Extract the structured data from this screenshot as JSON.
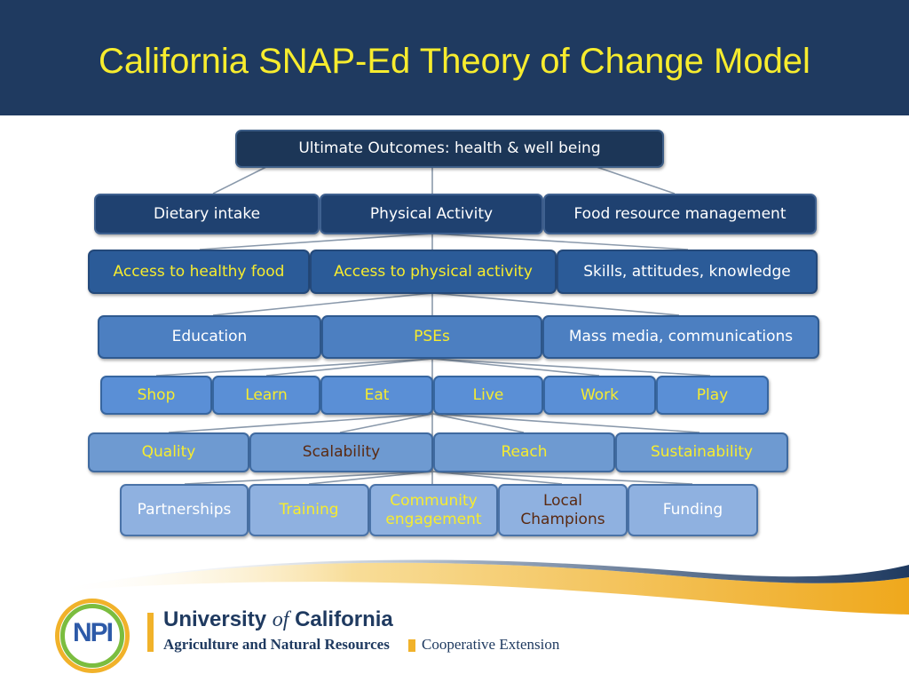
{
  "title": "California SNAP-Ed Theory of Change Model",
  "rows": [
    [
      {
        "label": "Ultimate Outcomes: health & well being",
        "color": "white"
      }
    ],
    [
      {
        "label": "Dietary intake",
        "color": "white"
      },
      {
        "label": "Physical Activity",
        "color": "white"
      },
      {
        "label": "Food resource management",
        "color": "white"
      }
    ],
    [
      {
        "label": "Access to healthy food",
        "color": "yellow"
      },
      {
        "label": "Access to physical activity",
        "color": "yellow"
      },
      {
        "label": "Skills, attitudes, knowledge",
        "color": "white"
      }
    ],
    [
      {
        "label": "Education",
        "color": "white"
      },
      {
        "label": "PSEs",
        "color": "yellow"
      },
      {
        "label": "Mass media, communications",
        "color": "white"
      }
    ],
    [
      {
        "label": "Shop",
        "color": "yellow"
      },
      {
        "label": "Learn",
        "color": "yellow"
      },
      {
        "label": "Eat",
        "color": "yellow"
      },
      {
        "label": "Live",
        "color": "yellow"
      },
      {
        "label": "Work",
        "color": "yellow"
      },
      {
        "label": "Play",
        "color": "yellow"
      }
    ],
    [
      {
        "label": "Quality",
        "color": "yellow"
      },
      {
        "label": "Scalability",
        "color": "brown"
      },
      {
        "label": "Reach",
        "color": "yellow"
      },
      {
        "label": "Sustainability",
        "color": "yellow"
      }
    ],
    [
      {
        "label": "Partnerships",
        "color": "white"
      },
      {
        "label": "Training",
        "color": "yellow"
      },
      {
        "label": "Community engagement",
        "color": "yellow"
      },
      {
        "label": "Local Champions",
        "color": "brown"
      },
      {
        "label": "Funding",
        "color": "white"
      }
    ]
  ],
  "footer": {
    "logo_text": "NPI",
    "university_pre": "University",
    "university_of": "of",
    "university_post": "California",
    "division": "Agriculture and Natural Resources",
    "extension": "Cooperative Extension"
  },
  "colors": {
    "header_bg": "#1f3a60",
    "title_text": "#f7ec2e",
    "yellow_text": "#f7ec2e",
    "brown_text": "#5a2a12",
    "wave_blue": "#1f3a60",
    "wave_gold": "#f1b22a"
  }
}
